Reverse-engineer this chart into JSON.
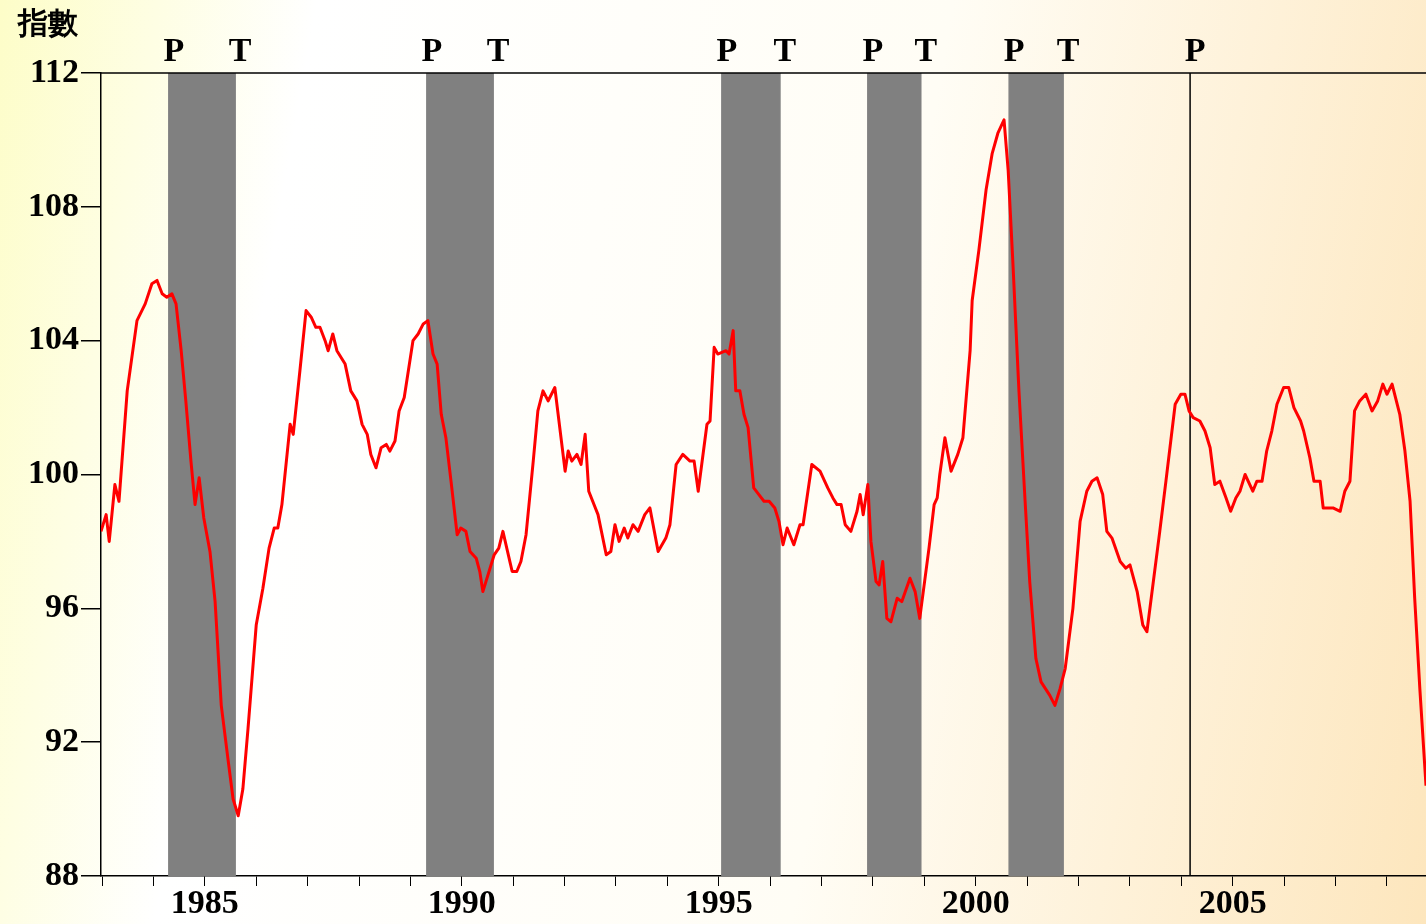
{
  "chart_data": {
    "type": "line",
    "ylabel": "指數",
    "xlim": [
      1982.98,
      2008.76
    ],
    "ylim": [
      88,
      112
    ],
    "yticks": [
      88,
      92,
      96,
      100,
      104,
      108,
      112
    ],
    "xticks": [
      {
        "value": 1983,
        "label": null
      },
      {
        "value": 1984,
        "label": null
      },
      1985,
      {
        "value": 1986,
        "label": null
      },
      {
        "value": 1987,
        "label": null
      },
      {
        "value": 1988,
        "label": null
      },
      {
        "value": 1989,
        "label": null
      },
      1990,
      {
        "value": 1991,
        "label": null
      },
      {
        "value": 1992,
        "label": null
      },
      {
        "value": 1993,
        "label": null
      },
      {
        "value": 1994,
        "label": null
      },
      1995,
      {
        "value": 1996,
        "label": null
      },
      {
        "value": 1997,
        "label": null
      },
      {
        "value": 1998,
        "label": null
      },
      {
        "value": 1999,
        "label": null
      },
      2000,
      {
        "value": 2001,
        "label": null
      },
      {
        "value": 2002,
        "label": null
      },
      {
        "value": 2003,
        "label": null
      },
      {
        "value": 2004,
        "label": null
      },
      2005,
      {
        "value": 2006,
        "label": null
      },
      {
        "value": 2007,
        "label": null
      },
      {
        "value": 2008,
        "label": null
      }
    ],
    "grid": false,
    "legend": false,
    "marker": "none",
    "line_style": "solid",
    "bands": [
      {
        "axis": "x",
        "from": 1984.3,
        "to": 1985.59,
        "color": "#808080"
      },
      {
        "axis": "x",
        "from": 1989.32,
        "to": 1990.61,
        "color": "#808080"
      },
      {
        "axis": "x",
        "from": 1995.06,
        "to": 1996.19,
        "color": "#808080"
      },
      {
        "axis": "x",
        "from": 1997.9,
        "to": 1998.93,
        "color": "#808080"
      },
      {
        "axis": "x",
        "from": 2000.65,
        "to": 2001.7,
        "color": "#808080"
      }
    ],
    "ref_lines": [
      {
        "axis": "x",
        "value": 1984.3,
        "label": "P",
        "color": "#808080"
      },
      {
        "axis": "x",
        "value": 1985.59,
        "label": "T",
        "color": "#808080"
      },
      {
        "axis": "x",
        "value": 1989.32,
        "label": "P",
        "color": "#808080"
      },
      {
        "axis": "x",
        "value": 1990.61,
        "label": "T",
        "color": "#808080"
      },
      {
        "axis": "x",
        "value": 1995.06,
        "label": "P",
        "color": "#808080"
      },
      {
        "axis": "x",
        "value": 1996.19,
        "label": "T",
        "color": "#808080"
      },
      {
        "axis": "x",
        "value": 1997.9,
        "label": "P",
        "color": "#808080"
      },
      {
        "axis": "x",
        "value": 1998.93,
        "label": "T",
        "color": "#808080"
      },
      {
        "axis": "x",
        "value": 2000.65,
        "label": "P",
        "color": "#808080"
      },
      {
        "axis": "x",
        "value": 2001.7,
        "label": "T",
        "color": "#808080"
      },
      {
        "axis": "x",
        "value": 2004.17,
        "label": "P",
        "color": "#000000"
      }
    ],
    "series": [
      {
        "color": "#ff0000",
        "x": [
          1982.98,
          1983.08,
          1983.14,
          1983.25,
          1983.33,
          1983.49,
          1983.68,
          1983.84,
          1983.97,
          1984.07,
          1984.17,
          1984.26,
          1984.36,
          1984.44,
          1984.54,
          1984.63,
          1984.73,
          1984.81,
          1984.89,
          1984.98,
          1985.1,
          1985.2,
          1985.32,
          1985.45,
          1985.55,
          1985.65,
          1985.74,
          1985.84,
          1986.0,
          1986.13,
          1986.25,
          1986.35,
          1986.42,
          1986.5,
          1986.66,
          1986.72,
          1986.85,
          1986.97,
          1987.07,
          1987.16,
          1987.24,
          1987.34,
          1987.4,
          1987.49,
          1987.57,
          1987.73,
          1987.84,
          1987.96,
          1988.06,
          1988.16,
          1988.23,
          1988.33,
          1988.43,
          1988.53,
          1988.6,
          1988.7,
          1988.78,
          1988.88,
          1989.05,
          1989.15,
          1989.25,
          1989.34,
          1989.44,
          1989.52,
          1989.6,
          1989.69,
          1989.79,
          1989.91,
          1989.98,
          1990.08,
          1990.16,
          1990.28,
          1990.35,
          1990.41,
          1990.63,
          1990.72,
          1990.8,
          1990.98,
          1991.07,
          1991.15,
          1991.25,
          1991.39,
          1991.48,
          1991.58,
          1991.68,
          1991.81,
          1992.01,
          1992.07,
          1992.14,
          1992.24,
          1992.32,
          1992.4,
          1992.47,
          1992.65,
          1992.81,
          1992.9,
          1992.98,
          1993.06,
          1993.16,
          1993.23,
          1993.33,
          1993.43,
          1993.56,
          1993.66,
          1993.82,
          1993.97,
          1994.05,
          1994.17,
          1994.3,
          1994.44,
          1994.52,
          1994.6,
          1994.77,
          1994.83,
          1994.91,
          1994.98,
          1995.14,
          1995.2,
          1995.28,
          1995.33,
          1995.41,
          1995.49,
          1995.57,
          1995.68,
          1995.78,
          1995.88,
          1995.98,
          1996.09,
          1996.17,
          1996.25,
          1996.33,
          1996.46,
          1996.58,
          1996.64,
          1996.81,
          1996.97,
          1997.12,
          1997.22,
          1997.3,
          1997.38,
          1997.46,
          1997.57,
          1997.69,
          1997.75,
          1997.81,
          1997.9,
          1997.96,
          1998.06,
          1998.12,
          1998.19,
          1998.27,
          1998.35,
          1998.47,
          1998.56,
          1998.72,
          1998.82,
          1998.91,
          1999.09,
          1999.19,
          1999.25,
          1999.3,
          1999.4,
          1999.52,
          1999.65,
          1999.75,
          1999.89,
          1999.93,
          2000.06,
          2000.2,
          2000.32,
          2000.43,
          2000.55,
          2000.63,
          2000.72,
          2000.84,
          2000.96,
          2001.05,
          2001.17,
          2001.27,
          2001.44,
          2001.54,
          2001.64,
          2001.74,
          2001.89,
          2002.03,
          2002.16,
          2002.26,
          2002.36,
          2002.47,
          2002.55,
          2002.65,
          2002.81,
          2002.92,
          2003.0,
          2003.14,
          2003.25,
          2003.33,
          2003.58,
          2003.7,
          2003.88,
          2003.99,
          2004.07,
          2004.15,
          2004.23,
          2004.36,
          2004.46,
          2004.56,
          2004.65,
          2004.75,
          2004.87,
          2004.96,
          2005.06,
          2005.14,
          2005.24,
          2005.39,
          2005.47,
          2005.57,
          2005.66,
          2005.76,
          2005.86,
          2005.99,
          2006.09,
          2006.19,
          2006.32,
          2006.38,
          2006.5,
          2006.58,
          2006.7,
          2006.76,
          2006.95,
          2007.09,
          2007.18,
          2007.28,
          2007.37,
          2007.47,
          2007.59,
          2007.71,
          2007.82,
          2007.92,
          2008.0,
          2008.1,
          2008.25,
          2008.35,
          2008.45,
          2008.54,
          2008.64,
          2008.76
        ],
        "values": [
          98.3,
          98.8,
          98.0,
          99.7,
          99.2,
          102.5,
          104.6,
          105.1,
          105.7,
          105.8,
          105.4,
          105.3,
          105.4,
          105.1,
          103.7,
          102.2,
          100.4,
          99.1,
          99.9,
          98.7,
          97.7,
          96.2,
          93.1,
          91.5,
          90.3,
          89.8,
          90.6,
          92.4,
          95.5,
          96.6,
          97.8,
          98.4,
          98.4,
          99.1,
          101.5,
          101.2,
          103.1,
          104.9,
          104.7,
          104.4,
          104.4,
          104.0,
          103.7,
          104.2,
          103.7,
          103.3,
          102.5,
          102.2,
          101.5,
          101.2,
          100.6,
          100.2,
          100.8,
          100.9,
          100.7,
          101.0,
          101.9,
          102.3,
          104.0,
          104.2,
          104.5,
          104.6,
          103.6,
          103.3,
          101.8,
          101.1,
          99.8,
          98.2,
          98.4,
          98.3,
          97.7,
          97.5,
          97.1,
          96.5,
          97.6,
          97.8,
          98.3,
          97.1,
          97.1,
          97.4,
          98.2,
          100.4,
          101.9,
          102.5,
          102.2,
          102.6,
          100.1,
          100.7,
          100.4,
          100.6,
          100.3,
          101.2,
          99.5,
          98.8,
          97.6,
          97.7,
          98.5,
          98.0,
          98.4,
          98.1,
          98.5,
          98.3,
          98.8,
          99.0,
          97.7,
          98.1,
          98.5,
          100.3,
          100.6,
          100.4,
          100.4,
          99.5,
          101.5,
          101.6,
          103.8,
          103.6,
          103.7,
          103.6,
          104.3,
          102.5,
          102.5,
          101.8,
          101.4,
          99.6,
          99.4,
          99.2,
          99.2,
          99.0,
          98.6,
          97.9,
          98.4,
          97.9,
          98.5,
          98.5,
          100.3,
          100.1,
          99.6,
          99.3,
          99.1,
          99.1,
          98.5,
          98.3,
          98.9,
          99.4,
          98.8,
          99.7,
          98.0,
          96.8,
          96.7,
          97.4,
          95.7,
          95.6,
          96.3,
          96.2,
          96.9,
          96.5,
          95.7,
          97.8,
          99.1,
          99.3,
          100.0,
          101.1,
          100.1,
          100.6,
          101.1,
          103.7,
          105.2,
          106.7,
          108.5,
          109.6,
          110.2,
          110.6,
          109.1,
          106.4,
          102.5,
          99.2,
          96.8,
          94.5,
          93.8,
          93.4,
          93.1,
          93.6,
          94.2,
          96.0,
          98.6,
          99.5,
          99.8,
          99.9,
          99.4,
          98.3,
          98.1,
          97.4,
          97.2,
          97.3,
          96.5,
          95.5,
          95.3,
          98.3,
          99.8,
          102.1,
          102.4,
          102.4,
          101.9,
          101.7,
          101.6,
          101.3,
          100.8,
          99.7,
          99.8,
          99.3,
          98.9,
          99.3,
          99.5,
          100.0,
          99.5,
          99.8,
          99.8,
          100.7,
          101.3,
          102.1,
          102.6,
          102.6,
          102.0,
          101.6,
          101.3,
          100.5,
          99.8,
          99.8,
          99.0,
          99.0,
          98.9,
          99.5,
          99.8,
          101.9,
          102.2,
          102.4,
          101.9,
          102.2,
          102.7,
          102.4,
          102.7,
          101.8,
          100.7,
          99.2,
          96.3,
          93.6,
          90.7
        ]
      }
    ]
  }
}
